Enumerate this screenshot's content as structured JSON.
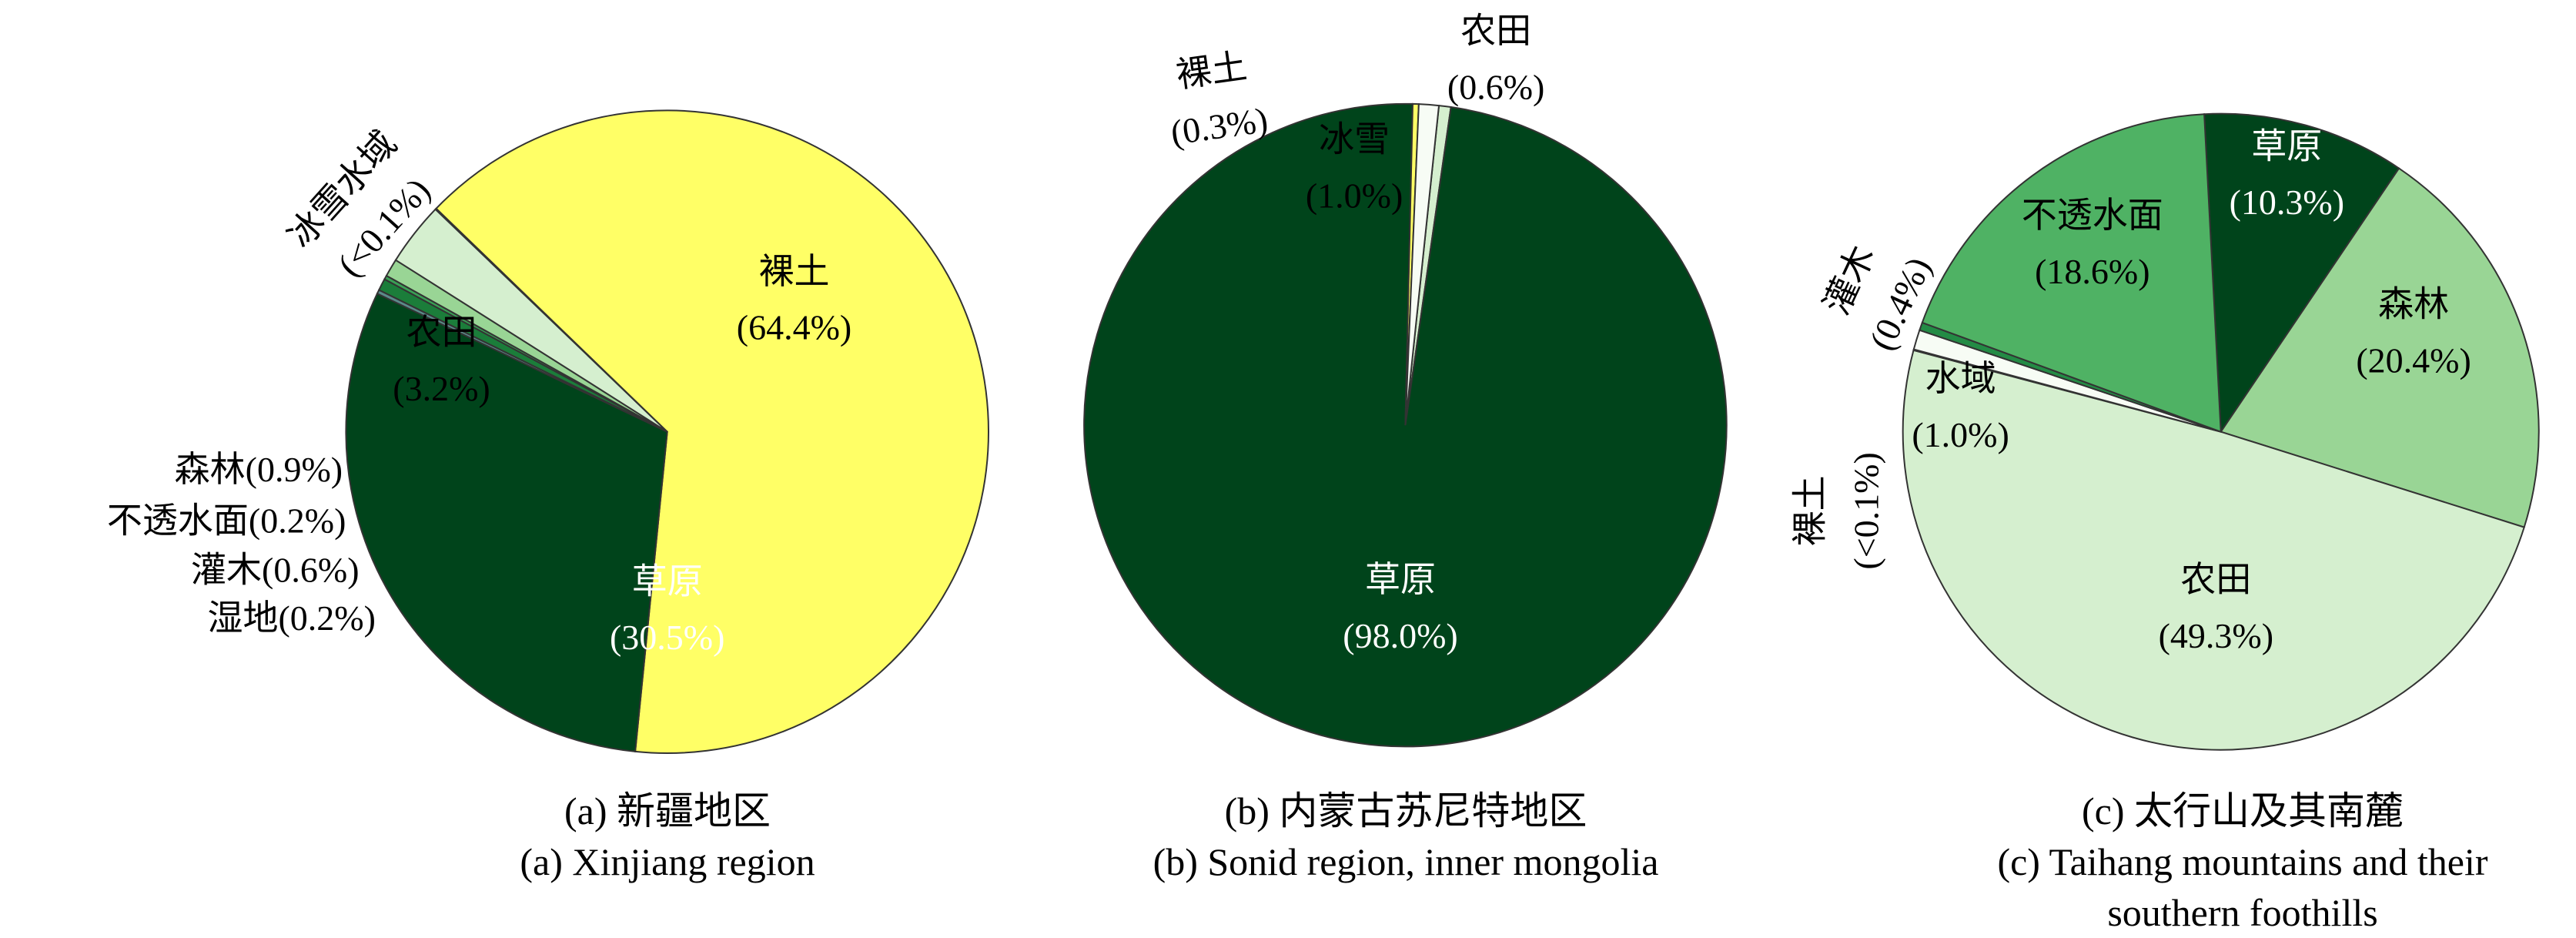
{
  "chart_data": [
    {
      "type": "pie",
      "title": "(a) 新疆地区",
      "subtitle": "(a) Xinjiang region",
      "categories": [
        "裸土",
        "草原",
        "湿地",
        "灌木",
        "不透水面",
        "森林",
        "农田",
        "冰雪水域"
      ],
      "values": [
        64.4,
        30.5,
        0.2,
        0.6,
        0.2,
        0.9,
        3.2,
        0.05
      ],
      "value_labels": [
        "(64.4%)",
        "(30.5%)",
        "(0.2%)",
        "(0.6%)",
        "(0.2%)",
        "(0.9%)",
        "(3.2%)",
        "(<0.1%)"
      ],
      "colors": [
        "#ffff66",
        "#00441b",
        "#5b8a8a",
        "#1b7d3a",
        "#3aa055",
        "#99d595",
        "#d5efcf",
        "#f7fcf5"
      ]
    },
    {
      "type": "pie",
      "title": "(b) 内蒙古苏尼特地区",
      "subtitle": "(b) Sonid region, inner mongolia",
      "categories": [
        "农田",
        "草原",
        "裸土",
        "冰雪"
      ],
      "values": [
        0.6,
        98.0,
        0.3,
        1.0
      ],
      "value_labels": [
        "(0.6%)",
        "(98.0%)",
        "(0.3%)",
        "(1.0%)"
      ],
      "colors": [
        "#d5efcf",
        "#00441b",
        "#ffff66",
        "#f7fcf5"
      ]
    },
    {
      "type": "pie",
      "title": "(c) 太行山及其南麓",
      "subtitle": "(c) Taihang mountains and their southern foothills",
      "categories": [
        "草原",
        "森林",
        "农田",
        "裸土",
        "水域",
        "灌木",
        "不透水面"
      ],
      "values": [
        10.3,
        20.4,
        49.3,
        0.05,
        1.0,
        0.4,
        18.6
      ],
      "value_labels": [
        "(10.3%)",
        "(20.4%)",
        "(49.3%)",
        "(<0.1%)",
        "(1.0%)",
        "(0.4%)",
        "(18.6%)"
      ],
      "colors": [
        "#00441b",
        "#99d595",
        "#d5efcf",
        "#ffff66",
        "#f7fcf5",
        "#238b45",
        "#4fb264"
      ]
    }
  ]
}
